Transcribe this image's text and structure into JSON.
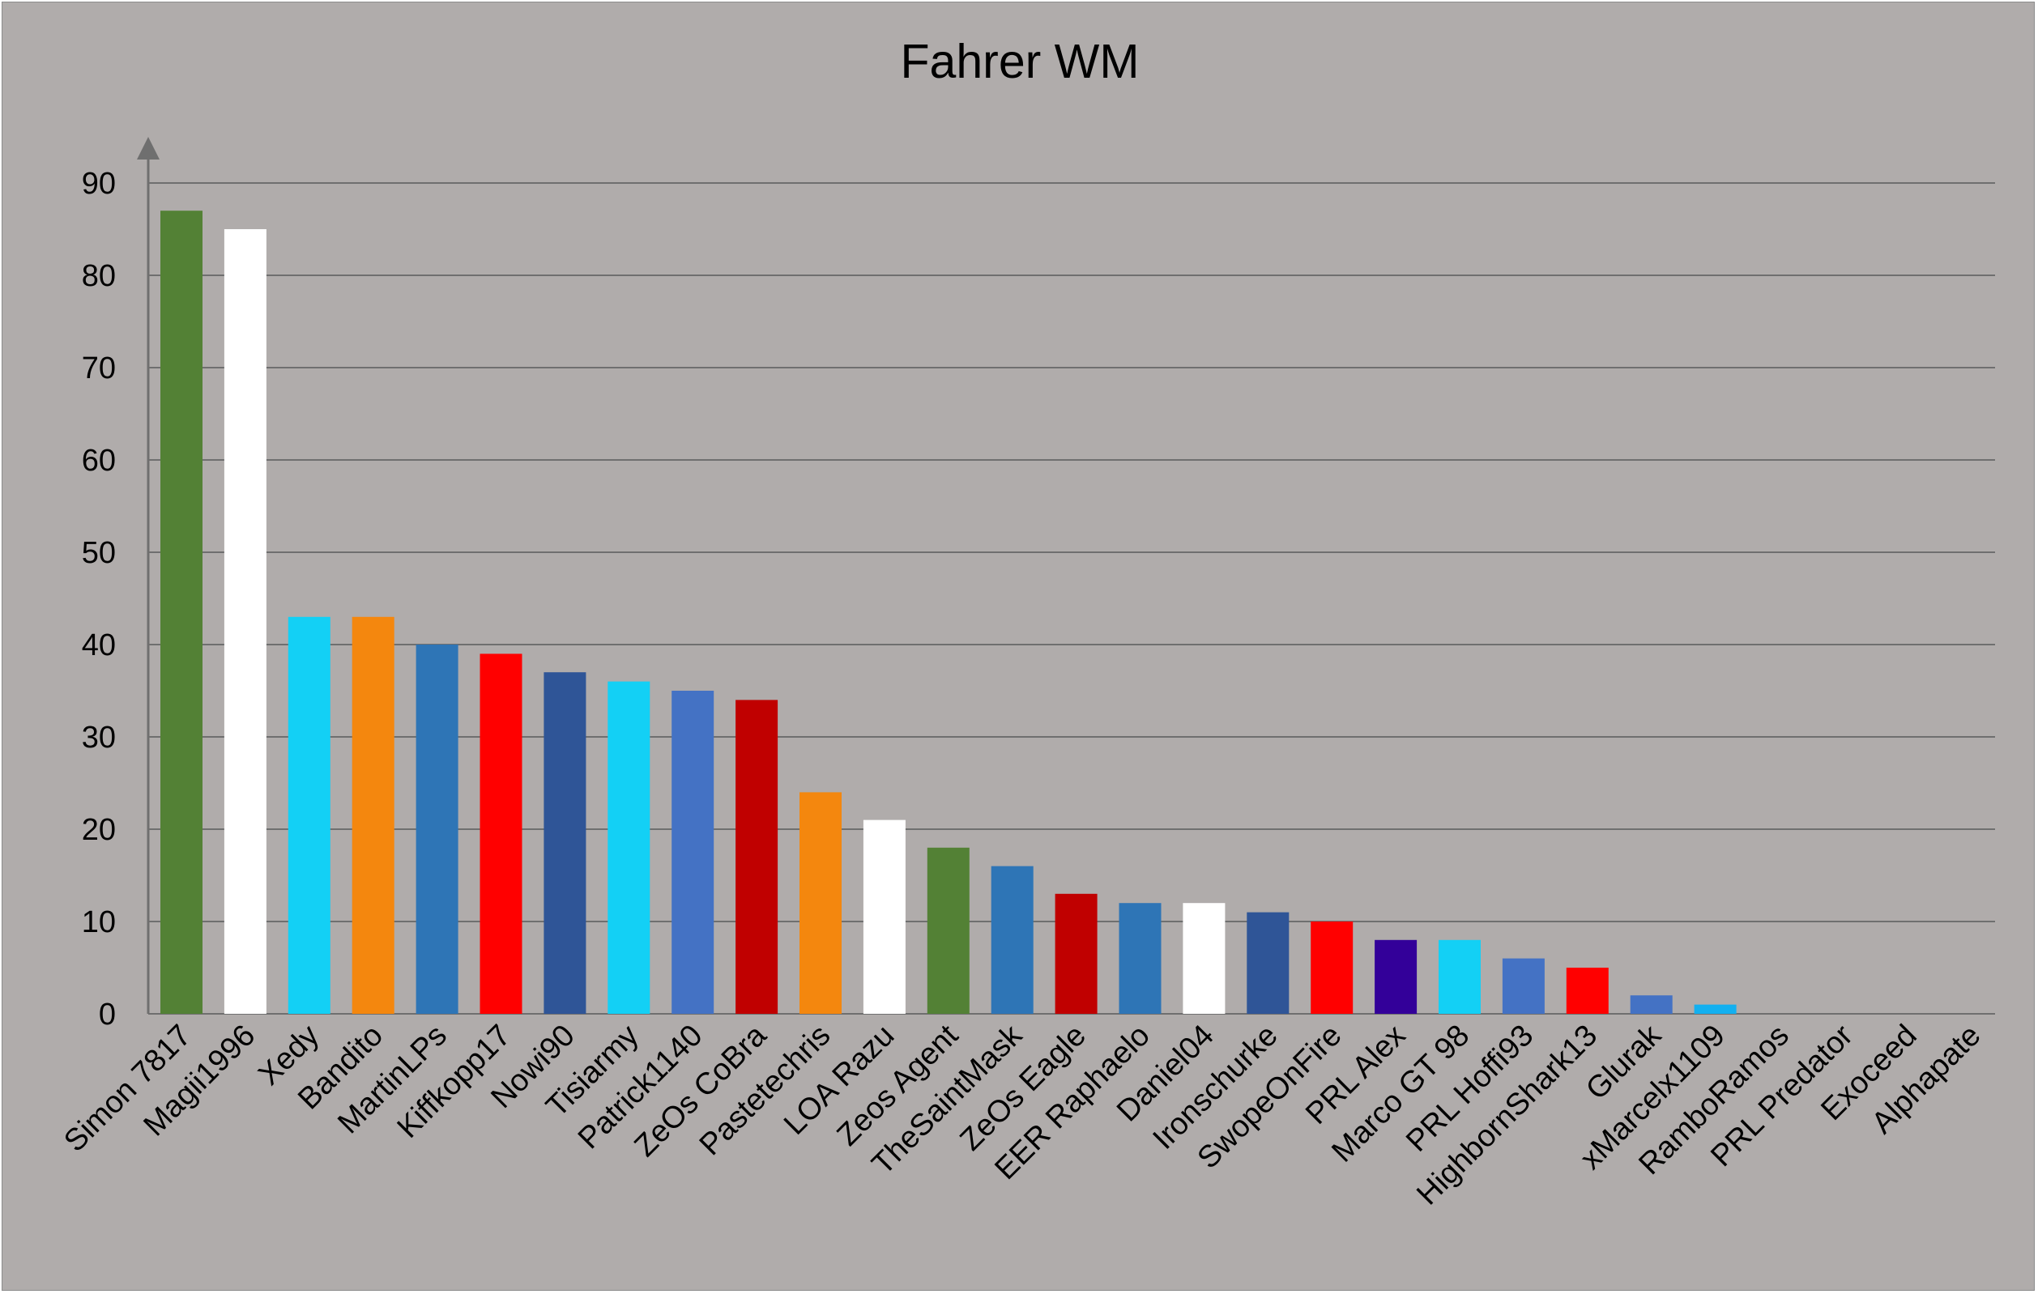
{
  "chart_data": {
    "type": "bar",
    "title": "Fahrer WM",
    "xlabel": "",
    "ylabel": "",
    "ylim": [
      0,
      90
    ],
    "yticks": [
      0,
      10,
      20,
      30,
      40,
      50,
      60,
      70,
      80,
      90
    ],
    "grid": true,
    "legend": "none",
    "categories": [
      "Simon 7817",
      "Magii1996",
      "Xedy",
      "Bandito",
      "MartinLPs",
      "Kiffkopp17",
      "Nowi90",
      "Tisiarmy",
      "Patrick1140",
      "ZeOs CoBra",
      "Pastetechris",
      "LOA Razu",
      "Zeos Agent",
      "TheSaintMask",
      "ZeOs Eagle",
      "EER Raphaelo",
      "Daniel04",
      "Ironschurke",
      "SwopeOnFire",
      "PRL Alex",
      "Marco GT 98",
      "PRL Hoffi93",
      "HighbornShark13",
      "Glurak",
      "xMarcelx1109",
      "RamboRamos",
      "PRL Predator",
      "Exoceed",
      "Alphapate"
    ],
    "values": [
      87,
      85,
      43,
      43,
      40,
      39,
      37,
      36,
      35,
      34,
      24,
      21,
      18,
      16,
      13,
      12,
      12,
      11,
      10,
      8,
      8,
      6,
      5,
      2,
      1,
      0,
      0,
      0,
      0
    ],
    "colors": [
      "#538135",
      "#ffffff",
      "#13d0f5",
      "#f4870e",
      "#2e75b6",
      "#ff0000",
      "#2f5597",
      "#13d0f5",
      "#4472c4",
      "#c00000",
      "#f4870e",
      "#ffffff",
      "#538135",
      "#2e75b6",
      "#c00000",
      "#2e75b6",
      "#ffffff",
      "#2f5597",
      "#ff0000",
      "#330099",
      "#13d0f5",
      "#4472c4",
      "#ff0000",
      "#4472c4",
      "#13b0f0",
      "#b0acab",
      "#b0acab",
      "#b0acab",
      "#b0acab"
    ],
    "background": "#b0acab",
    "gridline_color": "#6f6f6f"
  }
}
